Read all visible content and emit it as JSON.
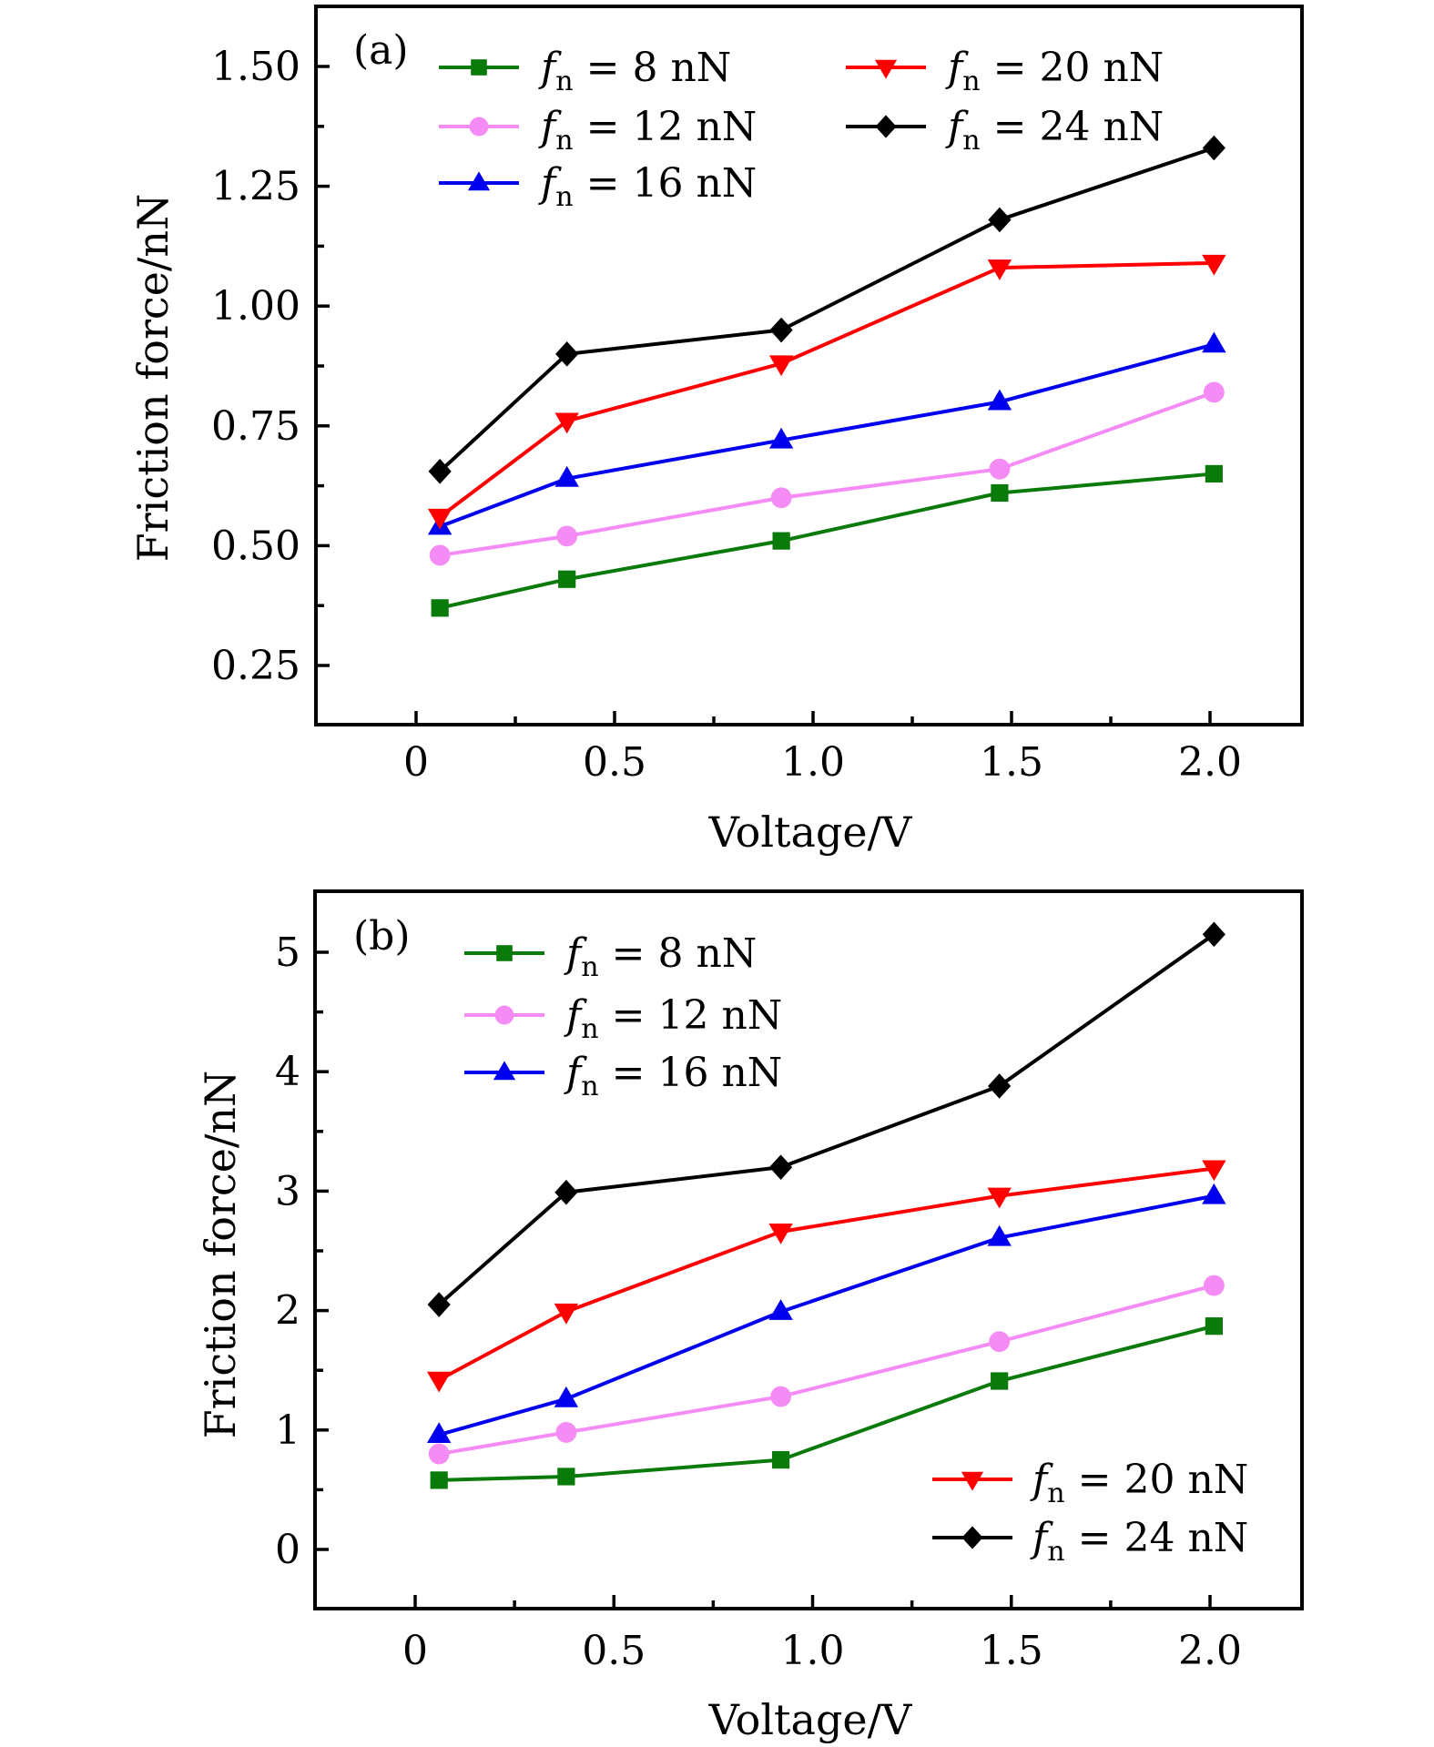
{
  "chart_data": [
    {
      "type": "line",
      "panel_label": "(a)",
      "title": "",
      "xlabel": "Voltage/V",
      "ylabel": "Friction force/nN",
      "xlim": [
        -0.25,
        2.25
      ],
      "ylim": [
        0.125,
        1.62
      ],
      "xticks": [
        0,
        0.5,
        1.0,
        1.5,
        2.0
      ],
      "xtick_labels": [
        "0",
        "0.5",
        "1.0",
        "1.5",
        "2.0"
      ],
      "yticks": [
        0.25,
        0.5,
        0.75,
        1.0,
        1.25,
        1.5
      ],
      "ytick_labels": [
        "0.25",
        "0.50",
        "0.75",
        "1.00",
        "1.25",
        "1.50"
      ],
      "grid": false,
      "x": [
        0.06,
        0.38,
        0.92,
        1.47,
        2.01
      ],
      "legend": {
        "placement": "top-left",
        "columns": 2
      },
      "series": [
        {
          "name": "f_n = 8 nN",
          "label_value": "8",
          "color": "#0a7a0a",
          "marker": "square",
          "values": [
            0.37,
            0.43,
            0.51,
            0.61,
            0.65
          ]
        },
        {
          "name": "f_n = 12 nN",
          "label_value": "12",
          "color": "#f58cf5",
          "marker": "circle",
          "values": [
            0.48,
            0.52,
            0.6,
            0.66,
            0.82
          ]
        },
        {
          "name": "f_n = 16 nN",
          "label_value": "16",
          "color": "#0000ee",
          "marker": "triangle-up",
          "values": [
            0.54,
            0.64,
            0.72,
            0.8,
            0.92
          ]
        },
        {
          "name": "f_n = 20 nN",
          "label_value": "20",
          "color": "#ff0000",
          "marker": "triangle-down",
          "values": [
            0.56,
            0.76,
            0.88,
            1.08,
            1.09
          ]
        },
        {
          "name": "f_n = 24 nN",
          "label_value": "24",
          "color": "#000000",
          "marker": "diamond",
          "values": [
            0.655,
            0.9,
            0.95,
            1.18,
            1.33
          ]
        }
      ]
    },
    {
      "type": "line",
      "panel_label": "(b)",
      "title": "",
      "xlabel": "Voltage/V",
      "ylabel": "Friction force/nN",
      "xlim": [
        -0.25,
        2.25
      ],
      "ylim": [
        -0.5,
        5.5
      ],
      "xticks": [
        0,
        0.5,
        1.0,
        1.5,
        2.0
      ],
      "xtick_labels": [
        "0",
        "0.5",
        "1.0",
        "1.5",
        "2.0"
      ],
      "yticks": [
        0,
        1,
        2,
        3,
        4,
        5
      ],
      "ytick_labels": [
        "0",
        "1",
        "2",
        "3",
        "4",
        "5"
      ],
      "grid": false,
      "x": [
        0.06,
        0.38,
        0.92,
        1.47,
        2.01
      ],
      "legend": {
        "placement": "top-left and bottom-right",
        "columns": 1
      },
      "series": [
        {
          "name": "f_n = 8 nN",
          "label_value": "8",
          "color": "#0a7a0a",
          "marker": "square",
          "values": [
            0.58,
            0.61,
            0.75,
            1.41,
            1.87
          ]
        },
        {
          "name": "f_n = 12 nN",
          "label_value": "12",
          "color": "#f58cf5",
          "marker": "circle",
          "values": [
            0.8,
            0.98,
            1.28,
            1.74,
            2.21
          ]
        },
        {
          "name": "f_n = 16 nN",
          "label_value": "16",
          "color": "#0000ee",
          "marker": "triangle-up",
          "values": [
            0.96,
            1.26,
            1.99,
            2.61,
            2.96
          ]
        },
        {
          "name": "f_n = 20 nN",
          "label_value": "20",
          "color": "#ff0000",
          "marker": "triangle-down",
          "values": [
            1.42,
            1.99,
            2.66,
            2.96,
            3.19
          ]
        },
        {
          "name": "f_n = 24 nN",
          "label_value": "24",
          "color": "#000000",
          "marker": "diamond",
          "values": [
            2.05,
            2.99,
            3.2,
            3.88,
            5.15
          ]
        }
      ]
    }
  ],
  "legend_text": {
    "symbol": "f",
    "subscript": "n",
    "equals": " = ",
    "unit": " nN"
  }
}
